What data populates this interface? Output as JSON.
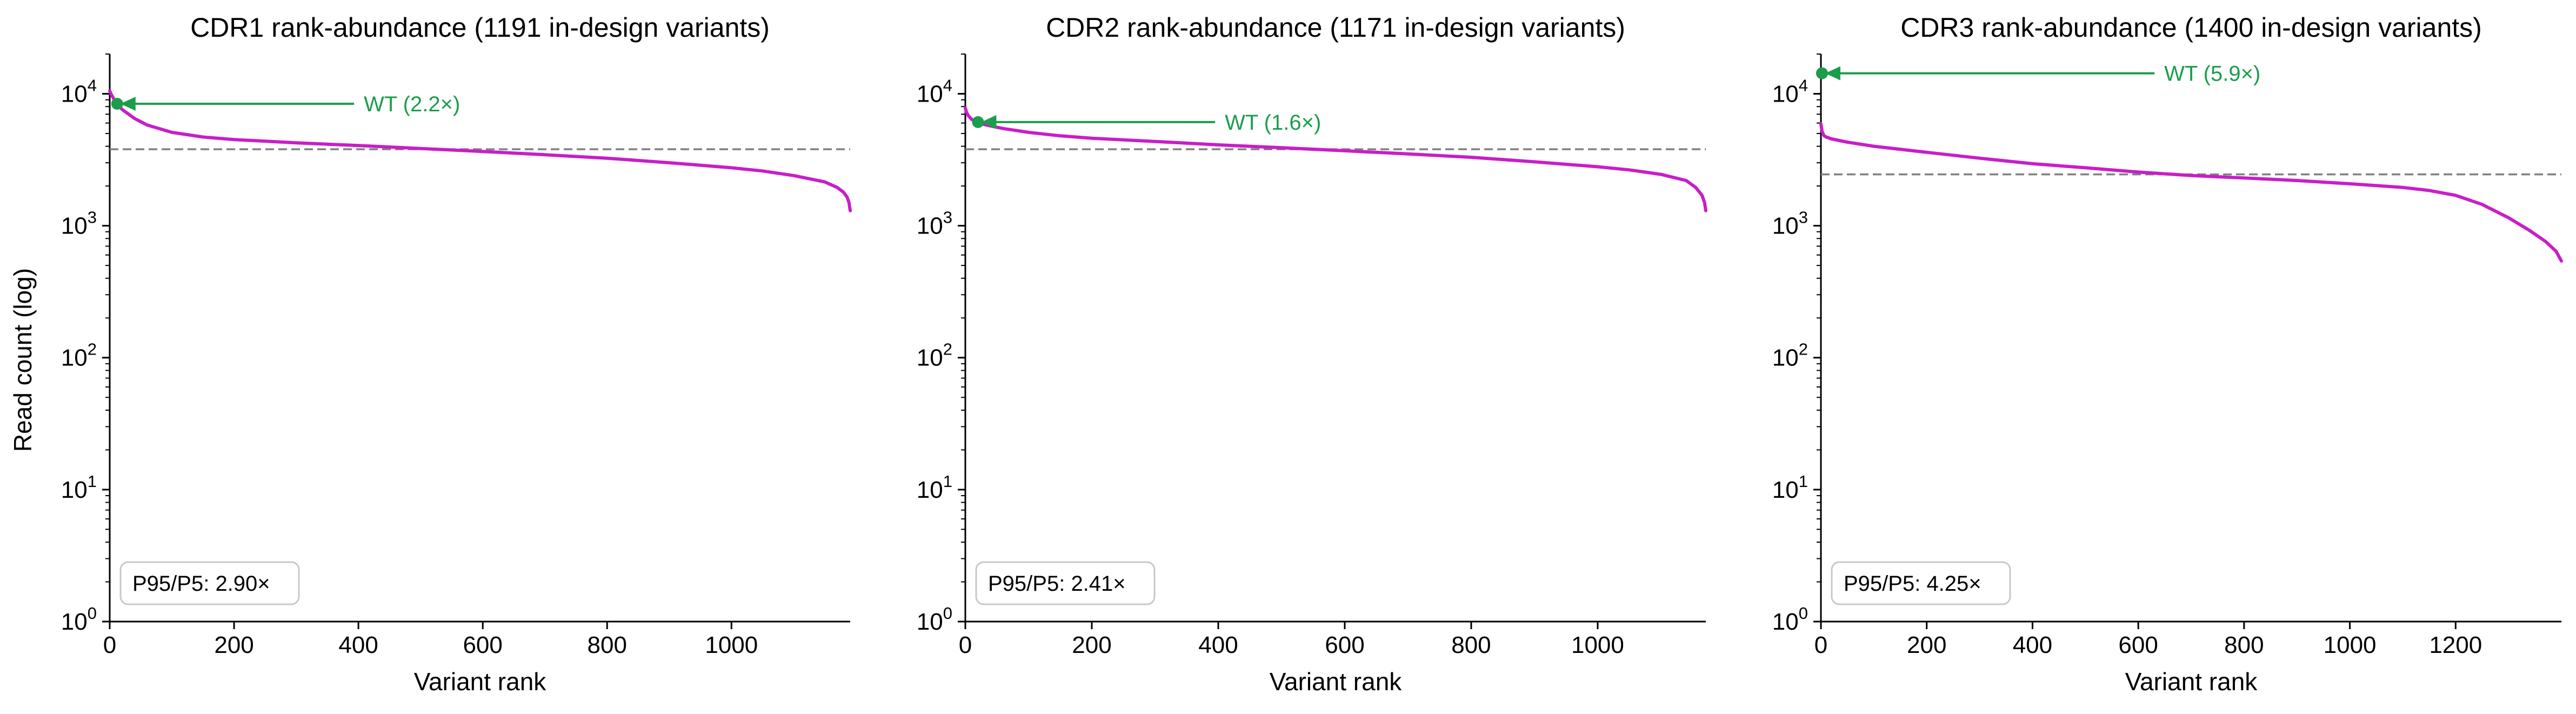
{
  "figure": {
    "ylabel_shared": "Read count (log)"
  },
  "colors": {
    "curve": "#c81ec8",
    "wt": "#1a9e4a",
    "median_line": "#808080",
    "axis": "#000000"
  },
  "chart_data": [
    {
      "type": "line",
      "title": "CDR1 rank-abundance (1191 in-design variants)",
      "xlabel": "Variant rank",
      "ylabel": "Read count (log)",
      "yscale": "log",
      "xlim": [
        0,
        1191
      ],
      "ylim": [
        1,
        20000
      ],
      "xticks": [
        0,
        200,
        400,
        600,
        800,
        1000
      ],
      "yticks": [
        {
          "value": 1,
          "label": "10^0"
        },
        {
          "value": 10,
          "label": "10^1"
        },
        {
          "value": 100,
          "label": "10^2"
        },
        {
          "value": 1000,
          "label": "10^3"
        },
        {
          "value": 10000,
          "label": "10^4"
        }
      ],
      "series": [
        {
          "x": [
            0,
            2,
            5,
            10,
            20,
            40,
            60,
            100,
            150,
            200,
            300,
            400,
            500,
            600,
            700,
            800,
            900,
            1000,
            1050,
            1100,
            1150,
            1170,
            1180,
            1186,
            1189,
            1190,
            1191
          ],
          "y": [
            10500,
            10000,
            9400,
            8600,
            7600,
            6500,
            5800,
            5100,
            4700,
            4500,
            4250,
            4050,
            3850,
            3650,
            3450,
            3250,
            3000,
            2750,
            2600,
            2400,
            2150,
            1950,
            1800,
            1650,
            1500,
            1400,
            1300
          ]
        }
      ],
      "wt": {
        "label": "WT (2.2×)",
        "rank": 12,
        "count": 8400
      },
      "median_line": 3800,
      "stat_box": "P95/P5: 2.90×",
      "grid": false
    },
    {
      "type": "line",
      "title": "CDR2 rank-abundance (1171 in-design variants)",
      "xlabel": "Variant rank",
      "ylabel": "",
      "yscale": "log",
      "xlim": [
        0,
        1171
      ],
      "ylim": [
        1,
        20000
      ],
      "xticks": [
        0,
        200,
        400,
        600,
        800,
        1000
      ],
      "yticks": [
        {
          "value": 1,
          "label": "10^0"
        },
        {
          "value": 10,
          "label": "10^1"
        },
        {
          "value": 100,
          "label": "10^2"
        },
        {
          "value": 1000,
          "label": "10^3"
        },
        {
          "value": 10000,
          "label": "10^4"
        }
      ],
      "series": [
        {
          "x": [
            0,
            2,
            5,
            10,
            20,
            40,
            60,
            100,
            150,
            200,
            300,
            400,
            500,
            600,
            700,
            800,
            900,
            1000,
            1050,
            1100,
            1140,
            1155,
            1165,
            1169,
            1170,
            1171
          ],
          "y": [
            7800,
            7200,
            6800,
            6400,
            6000,
            5700,
            5450,
            5100,
            4800,
            4600,
            4350,
            4100,
            3900,
            3700,
            3500,
            3300,
            3050,
            2800,
            2650,
            2450,
            2200,
            1950,
            1700,
            1500,
            1400,
            1300
          ]
        }
      ],
      "wt": {
        "label": "WT (1.6×)",
        "rank": 20,
        "count": 6100
      },
      "median_line": 3800,
      "stat_box": "P95/P5: 2.41×",
      "grid": false
    },
    {
      "type": "line",
      "title": "CDR3 rank-abundance (1400 in-design variants)",
      "xlabel": "Variant rank",
      "ylabel": "",
      "yscale": "log",
      "xlim": [
        0,
        1400
      ],
      "ylim": [
        1,
        20000
      ],
      "xticks": [
        0,
        200,
        400,
        600,
        800,
        1000,
        1200
      ],
      "yticks": [
        {
          "value": 1,
          "label": "10^0"
        },
        {
          "value": 10,
          "label": "10^1"
        },
        {
          "value": 100,
          "label": "10^2"
        },
        {
          "value": 1000,
          "label": "10^3"
        },
        {
          "value": 10000,
          "label": "10^4"
        }
      ],
      "series": [
        {
          "x": [
            0,
            2,
            4,
            6,
            10,
            20,
            50,
            100,
            200,
            300,
            400,
            500,
            600,
            700,
            800,
            900,
            1000,
            1100,
            1150,
            1200,
            1250,
            1300,
            1340,
            1370,
            1390,
            1400
          ],
          "y": [
            5900,
            5200,
            5000,
            4800,
            4700,
            4550,
            4300,
            4000,
            3600,
            3250,
            2950,
            2750,
            2550,
            2400,
            2300,
            2200,
            2080,
            1950,
            1850,
            1700,
            1450,
            1150,
            920,
            760,
            640,
            540
          ]
        }
      ],
      "wt": {
        "label": "WT (5.9×)",
        "rank": 2,
        "count": 14300
      },
      "median_line": 2450,
      "stat_box": "P95/P5: 4.25×",
      "grid": false
    }
  ]
}
